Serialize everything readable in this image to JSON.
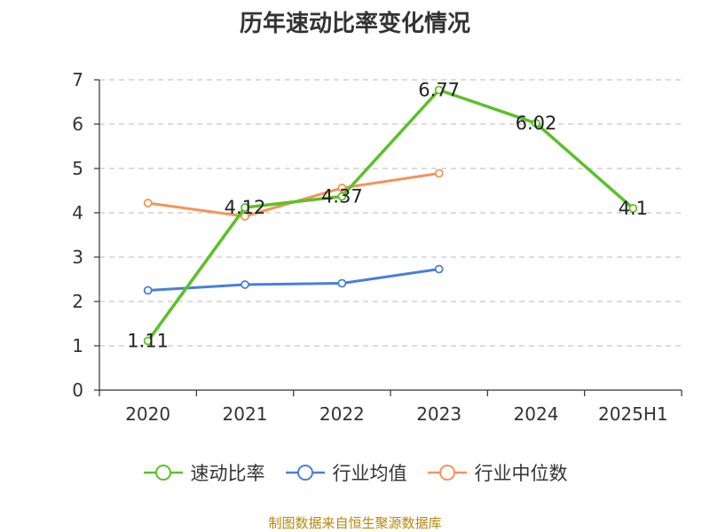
{
  "chart_data": {
    "type": "line",
    "title": "历年速动比率变化情况",
    "categories": [
      "2020",
      "2021",
      "2022",
      "2023",
      "2024",
      "2025H1"
    ],
    "ylim": [
      0,
      7
    ],
    "yticks": [
      "0",
      "1",
      "2",
      "3",
      "4",
      "5",
      "6",
      "7"
    ],
    "grid": true,
    "legend_position": "bottom",
    "series": [
      {
        "name": "速动比率",
        "color": "#5bc127",
        "values": [
          1.11,
          4.12,
          4.37,
          6.77,
          6.02,
          4.1
        ],
        "labels": [
          "1.11",
          "4.12",
          "4.37",
          "6.77",
          "6.02",
          "4.1"
        ]
      },
      {
        "name": "行业均值",
        "color": "#4a7fd9",
        "values": [
          2.25,
          2.38,
          2.41,
          2.73,
          null,
          null
        ]
      },
      {
        "name": "行业中位数",
        "color": "#f4935a",
        "values": [
          4.22,
          3.92,
          4.56,
          4.89,
          null,
          null
        ]
      }
    ]
  },
  "source_text": "制图数据来自恒生聚源数据库"
}
